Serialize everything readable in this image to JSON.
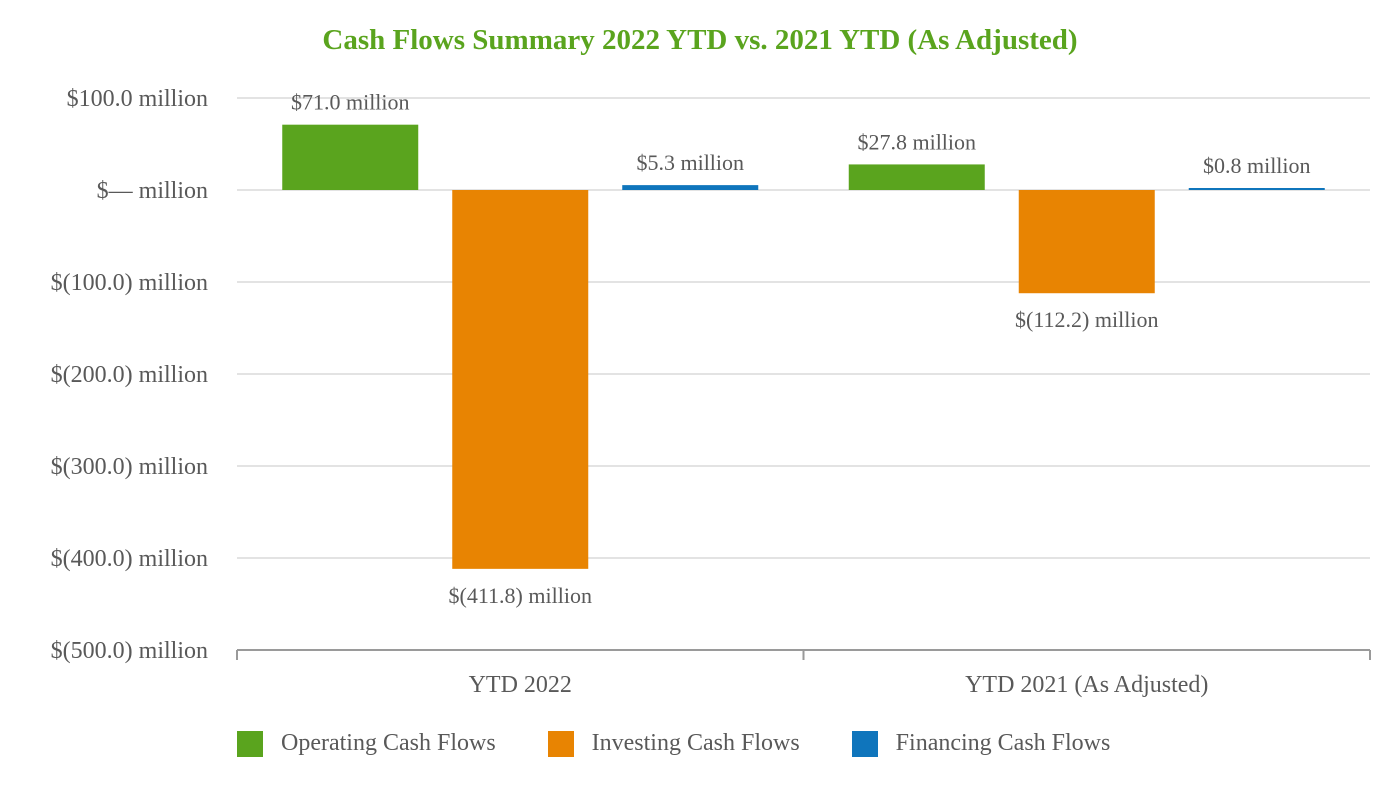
{
  "chart_data": {
    "type": "bar",
    "title": "Cash Flows Summary 2022 YTD vs. 2021 YTD (As Adjusted)",
    "xlabel": "",
    "ylabel": "",
    "categories": [
      "YTD 2022",
      "YTD 2021 (As Adjusted)"
    ],
    "ylim": [
      -500,
      100
    ],
    "yticks": [
      100,
      0,
      -100,
      -200,
      -300,
      -400,
      -500
    ],
    "ytick_labels": [
      "$100.0 million",
      "$— million",
      "$(100.0) million",
      "$(200.0) million",
      "$(300.0) million",
      "$(400.0) million",
      "$(500.0) million"
    ],
    "grid": true,
    "legend_position": "bottom-left",
    "series": [
      {
        "name": "Operating Cash Flows",
        "color": "#5aa41e",
        "values": [
          71.0,
          27.8
        ],
        "labels": [
          "$71.0 million",
          "$27.8 million"
        ]
      },
      {
        "name": "Investing Cash Flows",
        "color": "#e88402",
        "values": [
          -411.8,
          -112.2
        ],
        "labels": [
          "$(411.8) million",
          "$(112.2) million"
        ]
      },
      {
        "name": "Financing Cash Flows",
        "color": "#0f75bc",
        "values": [
          5.3,
          0.8
        ],
        "labels": [
          "$5.3 million",
          "$0.8 million"
        ]
      }
    ]
  }
}
